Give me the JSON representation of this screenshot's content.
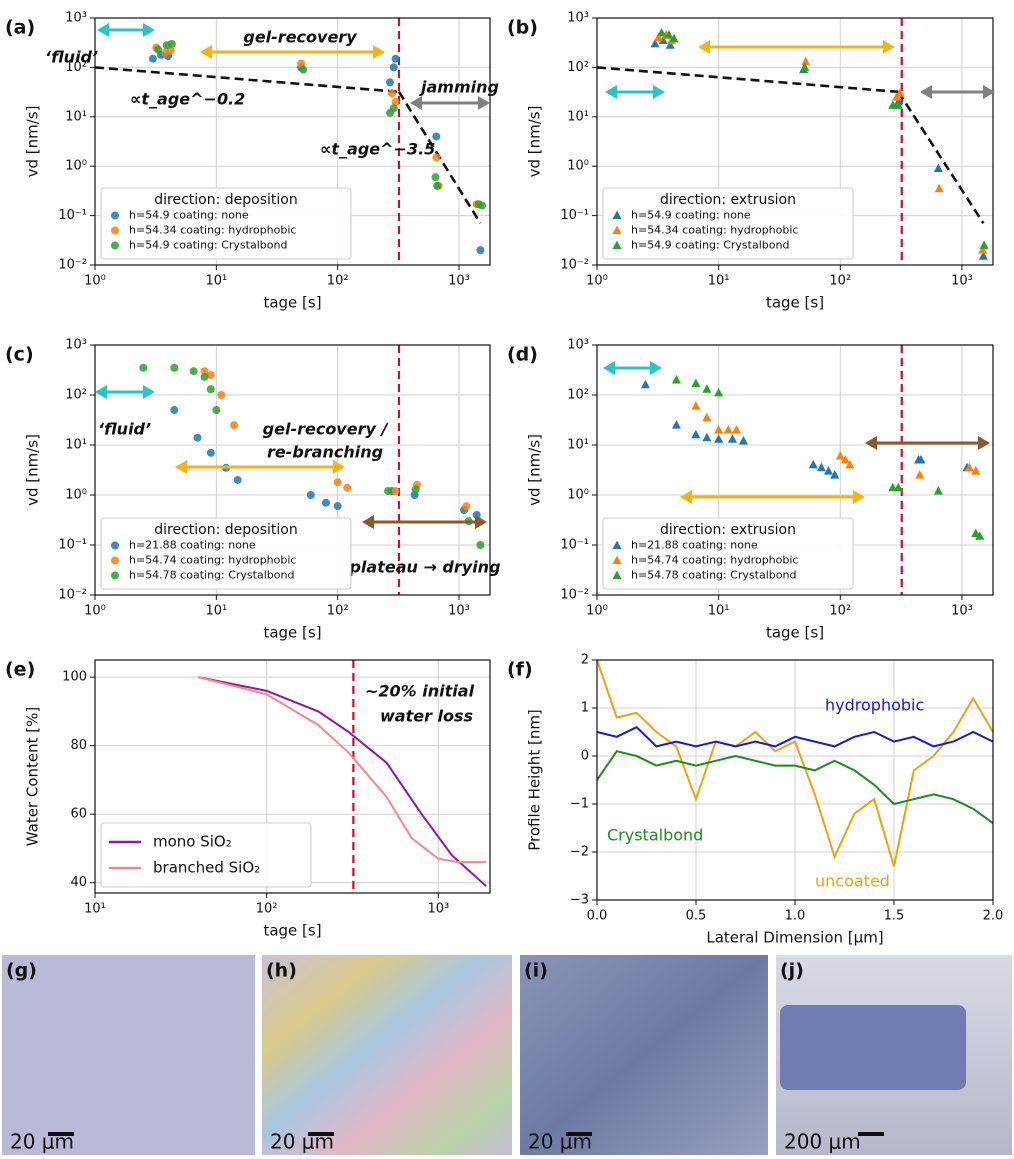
{
  "chart_data": [
    {
      "type": "scatter",
      "panel": "(a)",
      "xscale": "log",
      "yscale": "log",
      "grid": true,
      "marker": "circle",
      "xlabel": "tage [s]",
      "ylabel": "vd [nm/s]",
      "xlim": [
        1,
        1800
      ],
      "ylim": [
        0.01,
        1000
      ],
      "xticks": [
        {
          "value": 1,
          "label": "10⁰"
        },
        {
          "value": 10,
          "label": "10¹"
        },
        {
          "value": 100,
          "label": "10²"
        },
        {
          "value": 1000,
          "label": "10³"
        }
      ],
      "yticks": [
        {
          "value": 0.01,
          "label": "10⁻²"
        },
        {
          "value": 0.1,
          "label": "10⁻¹"
        },
        {
          "value": 1,
          "label": "10⁰"
        },
        {
          "value": 10,
          "label": "10¹"
        },
        {
          "value": 100,
          "label": "10²"
        },
        {
          "value": 1000,
          "label": "10³"
        }
      ],
      "legend_title": "direction: deposition",
      "legend": "lower left",
      "series": [
        {
          "name": "h=54.9  coating: none",
          "color": "#1f77b4",
          "x": [
            3,
            3.5,
            4,
            50,
            270,
            290,
            300,
            650,
            1500
          ],
          "values": [
            150,
            180,
            170,
            100,
            50,
            100,
            150,
            4,
            0.02
          ]
        },
        {
          "name": "h=54.34  coating: hydrophobic",
          "color": "#ff7f0e",
          "x": [
            3.2,
            3.8,
            4.2,
            50,
            280,
            300,
            650,
            680,
            1400
          ],
          "values": [
            250,
            200,
            220,
            120,
            30,
            20,
            1.5,
            0.4,
            0.17
          ]
        },
        {
          "name": "h=54.9  coating: Crystalbond",
          "color": "#2ca02c",
          "x": [
            3.3,
            3.9,
            4.3,
            52,
            270,
            290,
            640,
            660,
            1450,
            1550
          ],
          "values": [
            230,
            280,
            300,
            90,
            12,
            15,
            0.6,
            0.4,
            0.17,
            0.16
          ]
        }
      ],
      "fits": [
        {
          "x": [
            1,
            320
          ],
          "values": [
            100,
            32
          ]
        },
        {
          "x": [
            320,
            1500
          ],
          "values": [
            32,
            0.07
          ]
        }
      ],
      "vline": 320,
      "annotations": [
        "‘fluid’",
        "gel-recovery",
        "jamming",
        "∝t_age^−0.2",
        "∝t_age^−3.5"
      ]
    },
    {
      "type": "scatter",
      "panel": "(b)",
      "xscale": "log",
      "yscale": "log",
      "grid": true,
      "marker": "triangle",
      "xlabel": "tage [s]",
      "ylabel": "vd [nm/s]",
      "xlim": [
        1,
        1800
      ],
      "ylim": [
        0.01,
        1000
      ],
      "xticks": [
        {
          "value": 1,
          "label": "10⁰"
        },
        {
          "value": 10,
          "label": "10¹"
        },
        {
          "value": 100,
          "label": "10²"
        },
        {
          "value": 1000,
          "label": "10³"
        }
      ],
      "yticks": [
        {
          "value": 0.01,
          "label": "10⁻²"
        },
        {
          "value": 0.1,
          "label": "10⁻¹"
        },
        {
          "value": 1,
          "label": "10⁰"
        },
        {
          "value": 10,
          "label": "10¹"
        },
        {
          "value": 100,
          "label": "10²"
        },
        {
          "value": 1000,
          "label": "10³"
        }
      ],
      "legend_title": "direction: extrusion",
      "legend": "lower left",
      "series": [
        {
          "name": "h=54.9  coating: none",
          "color": "#1f77b4",
          "x": [
            3,
            3.5,
            4,
            50,
            300,
            640,
            1500
          ],
          "values": [
            300,
            350,
            280,
            90,
            20,
            0.9,
            0.015
          ]
        },
        {
          "name": "h=54.34  coating: hydrophobic",
          "color": "#ff7f0e",
          "x": [
            3.2,
            3.7,
            4.1,
            52,
            290,
            310,
            650,
            1480
          ],
          "values": [
            400,
            450,
            350,
            130,
            25,
            30,
            0.35,
            0.02
          ]
        },
        {
          "name": "h=54.9  coating: Crystalbond",
          "color": "#2ca02c",
          "x": [
            3.4,
            3.9,
            4.3,
            51,
            270,
            300,
            1520
          ],
          "values": [
            500,
            450,
            380,
            100,
            17,
            17,
            0.025
          ]
        }
      ],
      "fits": [
        {
          "x": [
            1,
            300
          ],
          "values": [
            100,
            32
          ]
        },
        {
          "x": [
            300,
            1500
          ],
          "values": [
            32,
            0.07
          ]
        }
      ],
      "vline": 320,
      "annotations": []
    },
    {
      "type": "scatter",
      "panel": "(c)",
      "xscale": "log",
      "yscale": "log",
      "grid": true,
      "marker": "circle",
      "xlabel": "tage [s]",
      "ylabel": "vd [nm/s]",
      "xlim": [
        1,
        1800
      ],
      "ylim": [
        0.01,
        1000
      ],
      "xticks": [
        {
          "value": 1,
          "label": "10⁰"
        },
        {
          "value": 10,
          "label": "10¹"
        },
        {
          "value": 100,
          "label": "10²"
        },
        {
          "value": 1000,
          "label": "10³"
        }
      ],
      "yticks": [
        {
          "value": 0.01,
          "label": "10⁻²"
        },
        {
          "value": 0.1,
          "label": "10⁻¹"
        },
        {
          "value": 1,
          "label": "10⁰"
        },
        {
          "value": 10,
          "label": "10¹"
        },
        {
          "value": 100,
          "label": "10²"
        },
        {
          "value": 1000,
          "label": "10³"
        }
      ],
      "legend_title": "direction: deposition",
      "legend": "lower left",
      "series": [
        {
          "name": "h=21.88  coating: none",
          "color": "#1f77b4",
          "x": [
            4.5,
            7,
            9,
            12,
            15,
            60,
            80,
            100,
            280,
            430,
            1100,
            1400
          ],
          "values": [
            50,
            14,
            7,
            3.5,
            2,
            1,
            0.7,
            0.6,
            1.2,
            1,
            0.5,
            0.4
          ]
        },
        {
          "name": "h=54.74  coating: hydrophobic",
          "color": "#ff7f0e",
          "x": [
            8,
            9,
            11,
            14,
            100,
            120,
            300,
            450,
            1150,
            1450
          ],
          "values": [
            300,
            250,
            100,
            25,
            1.8,
            1.4,
            1.2,
            1.6,
            0.6,
            0.3
          ]
        },
        {
          "name": "h=54.78  coating: Crystalbond",
          "color": "#2ca02c",
          "x": [
            2.5,
            4.5,
            6.5,
            8,
            9,
            10,
            260,
            440,
            1200,
            1500
          ],
          "values": [
            350,
            350,
            300,
            230,
            130,
            50,
            1.2,
            1.3,
            0.3,
            0.1
          ]
        }
      ],
      "vline": 320,
      "annotations": [
        "‘fluid’",
        "gel-recovery /",
        "re-branching",
        "plateau → drying"
      ]
    },
    {
      "type": "scatter",
      "panel": "(d)",
      "xscale": "log",
      "yscale": "log",
      "grid": true,
      "marker": "triangle",
      "xlabel": "tage [s]",
      "ylabel": "vd [nm/s]",
      "xlim": [
        1,
        1800
      ],
      "ylim": [
        0.01,
        1000
      ],
      "xticks": [
        {
          "value": 1,
          "label": "10⁰"
        },
        {
          "value": 10,
          "label": "10¹"
        },
        {
          "value": 100,
          "label": "10²"
        },
        {
          "value": 1000,
          "label": "10³"
        }
      ],
      "yticks": [
        {
          "value": 0.01,
          "label": "10⁻²"
        },
        {
          "value": 0.1,
          "label": "10⁻¹"
        },
        {
          "value": 1,
          "label": "10⁰"
        },
        {
          "value": 10,
          "label": "10¹"
        },
        {
          "value": 100,
          "label": "10²"
        },
        {
          "value": 1000,
          "label": "10³"
        }
      ],
      "legend_title": "direction: extrusion",
      "legend": "lower left",
      "series": [
        {
          "name": "h=21.88  coating: none",
          "color": "#1f77b4",
          "x": [
            2.5,
            4.5,
            6.5,
            8,
            10,
            13,
            16,
            60,
            70,
            80,
            90,
            440,
            460,
            1100,
            1300
          ],
          "values": [
            160,
            25,
            16,
            14,
            13,
            13,
            12,
            4,
            3.5,
            3,
            2.5,
            5,
            5,
            3.5,
            3
          ]
        },
        {
          "name": "h=54.74  coating: hydrophobic",
          "color": "#ff7f0e",
          "x": [
            6.5,
            8,
            10,
            12,
            14,
            100,
            110,
            120,
            450,
            1150,
            1300
          ],
          "values": [
            60,
            35,
            20,
            20,
            20,
            6,
            5,
            4,
            2.5,
            3.5,
            3
          ]
        },
        {
          "name": "h=54.78  coating: Crystalbond",
          "color": "#2ca02c",
          "x": [
            4.5,
            6.5,
            8,
            10,
            270,
            300,
            640,
            1300,
            1400
          ],
          "values": [
            200,
            170,
            130,
            110,
            1.4,
            1.4,
            1.2,
            0.17,
            0.15
          ]
        }
      ],
      "vline": 320,
      "annotations": []
    },
    {
      "type": "line",
      "panel": "(e)",
      "xscale": "log",
      "grid": true,
      "xlabel": "tage [s]",
      "ylabel": "Water Content [%]",
      "xlim": [
        10,
        2000
      ],
      "ylim": [
        37,
        105
      ],
      "xticks": [
        {
          "value": 10,
          "label": "10¹"
        },
        {
          "value": 100,
          "label": "10²"
        },
        {
          "value": 1000,
          "label": "10³"
        }
      ],
      "yticks": [
        40,
        60,
        80,
        100
      ],
      "legend": "lower left",
      "series": [
        {
          "name": "mono SiO₂",
          "color": "#8b1a9e",
          "x": [
            40,
            100,
            200,
            300,
            500,
            800,
            1200,
            1900
          ],
          "values": [
            100,
            96,
            90,
            84,
            75,
            60,
            48,
            39
          ]
        },
        {
          "name": "branched SiO₂",
          "color": "#f4878a",
          "x": [
            40,
            100,
            200,
            300,
            500,
            700,
            1000,
            1300,
            1900
          ],
          "values": [
            100,
            95,
            86,
            78,
            65,
            53,
            47,
            46,
            46
          ]
        }
      ],
      "vline": 320,
      "annotations": [
        "~20% initial",
        "water loss"
      ]
    },
    {
      "type": "line",
      "panel": "(f)",
      "grid": true,
      "xlabel": "Lateral Dimension [μm]",
      "ylabel": "Profile Height [nm]",
      "xlim": [
        0,
        2
      ],
      "ylim": [
        -3,
        2
      ],
      "xticks": [
        {
          "value": 0,
          "label": "0.0"
        },
        {
          "value": 0.5,
          "label": "0.5"
        },
        {
          "value": 1,
          "label": "1.0"
        },
        {
          "value": 1.5,
          "label": "1.5"
        },
        {
          "value": 2,
          "label": "2.0"
        }
      ],
      "yticks": [
        {
          "value": -3,
          "label": "−3"
        },
        {
          "value": -2,
          "label": "−2"
        },
        {
          "value": -1,
          "label": "−1"
        },
        0,
        1,
        2
      ],
      "series": [
        {
          "color": "#e8a317",
          "x": [
            0,
            0.1,
            0.2,
            0.3,
            0.4,
            0.5,
            0.6,
            0.7,
            0.8,
            0.9,
            1.0,
            1.1,
            1.2,
            1.3,
            1.4,
            1.5,
            1.6,
            1.7,
            1.8,
            1.9,
            2.0
          ],
          "values": [
            2,
            0.8,
            0.9,
            0.5,
            0.2,
            -0.9,
            0.3,
            0.2,
            0.5,
            0.1,
            0.3,
            -0.8,
            -2.1,
            -1.2,
            -0.9,
            -2.3,
            -0.3,
            0,
            0.5,
            1.2,
            0.5
          ]
        },
        {
          "color": "#1f8a1f",
          "x": [
            0,
            0.1,
            0.2,
            0.3,
            0.4,
            0.5,
            0.6,
            0.7,
            0.8,
            0.9,
            1.0,
            1.1,
            1.2,
            1.3,
            1.4,
            1.5,
            1.6,
            1.7,
            1.8,
            1.9,
            2.0
          ],
          "values": [
            -0.5,
            0.1,
            0,
            -0.2,
            -0.1,
            -0.2,
            -0.1,
            0,
            -0.1,
            -0.2,
            -0.2,
            -0.3,
            -0.1,
            -0.3,
            -0.6,
            -1,
            -0.9,
            -0.8,
            -0.9,
            -1.1,
            -1.4
          ]
        },
        {
          "color": "#1a1acc",
          "x": [
            0,
            0.1,
            0.2,
            0.3,
            0.4,
            0.5,
            0.6,
            0.7,
            0.8,
            0.9,
            1.0,
            1.1,
            1.2,
            1.3,
            1.4,
            1.5,
            1.6,
            1.7,
            1.8,
            1.9,
            2.0
          ],
          "values": [
            0.5,
            0.4,
            0.6,
            0.2,
            0.3,
            0.2,
            0.3,
            0.2,
            0.3,
            0.2,
            0.4,
            0.3,
            0.2,
            0.4,
            0.5,
            0.3,
            0.4,
            0.2,
            0.3,
            0.5,
            0.3
          ]
        }
      ],
      "annotations": [
        "uncoated",
        "Crystalbond",
        "hydrophobic"
      ]
    }
  ],
  "micrographs": [
    {
      "panel": "(g)",
      "scale": "20 μm"
    },
    {
      "panel": "(h)",
      "scale": "20 μm"
    },
    {
      "panel": "(i)",
      "scale": "20 μm"
    },
    {
      "panel": "(j)",
      "scale": "200 μm"
    }
  ]
}
